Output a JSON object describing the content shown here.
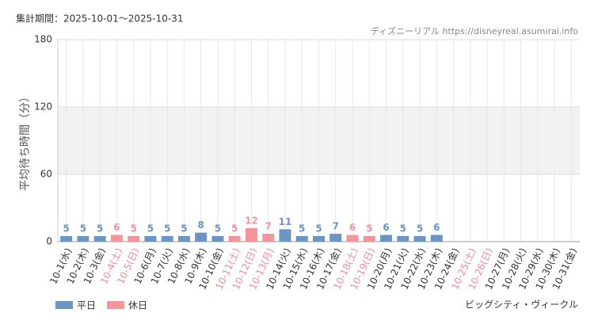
{
  "chart_data": {
    "type": "bar",
    "title": "集計期間：2025-10-01～2025-10-31",
    "source": "ディズニーリアル https://disneyreal.asumirai.info",
    "attraction": "ビッグシティ・ヴィークル",
    "y_label": "平均待ち時間（分）",
    "categories": [
      "10-1(水)",
      "10-2(木)",
      "10-3(金)",
      "10-4(土)",
      "10-5(日)",
      "10-6(月)",
      "10-7(火)",
      "10-8(水)",
      "10-9(木)",
      "10-10(金)",
      "10-11(土)",
      "10-12(日)",
      "10-13(月)",
      "10-14(火)",
      "10-15(水)",
      "10-16(木)",
      "10-17(金)",
      "10-18(土)",
      "10-19(日)",
      "10-20(月)",
      "10-21(火)",
      "10-22(水)",
      "10-23(木)",
      "10-24(金)",
      "10-25(土)",
      "10-26(日)",
      "10-27(月)",
      "10-28(火)",
      "10-29(水)",
      "10-30(木)",
      "10-31(金)"
    ],
    "category_colors": [
      "#333333",
      "#333333",
      "#333333",
      "#f08c93",
      "#f08c93",
      "#333333",
      "#333333",
      "#333333",
      "#333333",
      "#333333",
      "#f08c93",
      "#f08c93",
      "#f08c93",
      "#333333",
      "#333333",
      "#333333",
      "#333333",
      "#f08c93",
      "#f08c93",
      "#333333",
      "#333333",
      "#333333",
      "#333333",
      "#333333",
      "#f08c93",
      "#f08c93",
      "#333333",
      "#333333",
      "#333333",
      "#333333",
      "#333333"
    ],
    "series": [
      {
        "name": "平日",
        "color": "#6b96c3",
        "values": [
          5,
          5,
          5,
          null,
          null,
          5,
          5,
          5,
          8,
          5,
          null,
          null,
          null,
          11,
          5,
          5,
          7,
          null,
          null,
          6,
          5,
          5,
          6,
          null,
          null,
          null,
          null,
          null,
          null,
          null,
          null
        ]
      },
      {
        "name": "休日",
        "color": "#f4959b",
        "values": [
          null,
          null,
          null,
          6,
          5,
          null,
          null,
          null,
          null,
          null,
          5,
          12,
          7,
          null,
          null,
          null,
          null,
          6,
          5,
          null,
          null,
          null,
          null,
          null,
          null,
          null,
          null,
          null,
          null,
          null,
          null
        ]
      }
    ],
    "ylim": [
      0,
      180
    ],
    "yticks": [
      0,
      60,
      120,
      180
    ],
    "grid": true,
    "band": [
      60,
      120
    ]
  }
}
